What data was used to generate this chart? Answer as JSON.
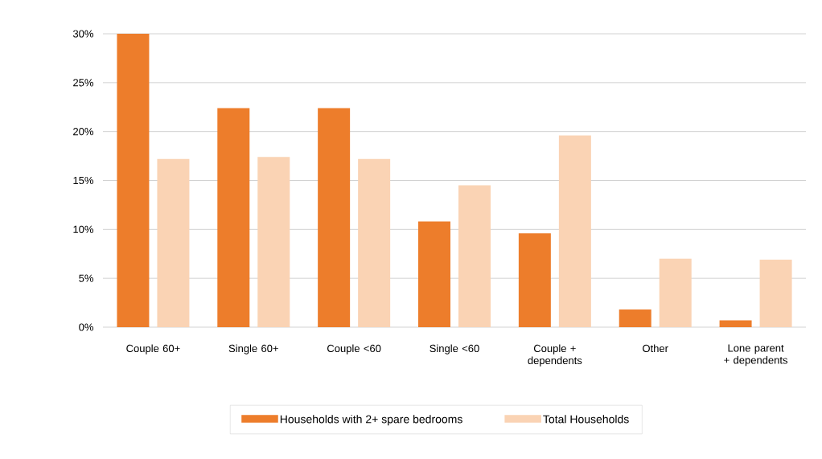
{
  "chart_data": {
    "type": "bar",
    "categories": [
      "Couple 60+",
      "Single 60+",
      "Couple <60",
      "Single <60",
      "Couple + dependents",
      "Other",
      "Lone parent + dependents"
    ],
    "series": [
      {
        "name": "Households with 2+ spare bedrooms",
        "color": "#ed7d2b",
        "values": [
          30,
          22.4,
          22.4,
          10.8,
          9.6,
          1.8,
          0.7
        ]
      },
      {
        "name": "Total Households",
        "color": "#fad3b4",
        "values": [
          17.2,
          17.4,
          17.2,
          14.5,
          19.6,
          7.0,
          6.9
        ]
      }
    ],
    "ylim": [
      0,
      30
    ],
    "yticks": [
      {
        "value": 0,
        "label": "0%"
      },
      {
        "value": 5,
        "label": "5%"
      },
      {
        "value": 10,
        "label": "10%"
      },
      {
        "value": 15,
        "label": "15%"
      },
      {
        "value": 20,
        "label": "20%"
      },
      {
        "value": 25,
        "label": "25%"
      },
      {
        "value": 30,
        "label": "30%"
      }
    ],
    "grid": "y",
    "legend": "bottom"
  }
}
